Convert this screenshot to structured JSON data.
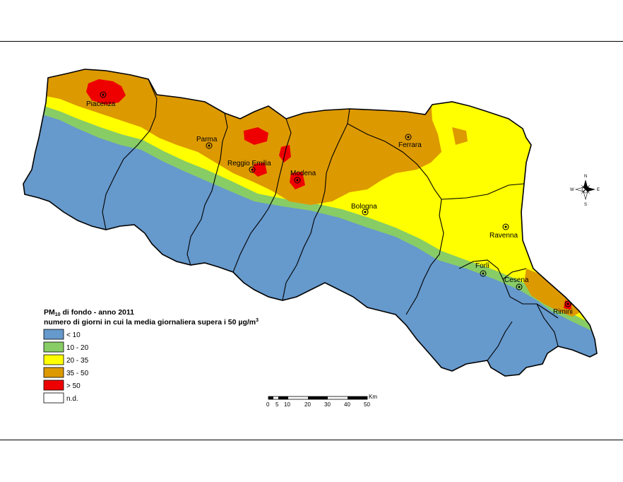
{
  "colors": {
    "lt10": "#6699cc",
    "c10_20": "#88cc66",
    "c20_35": "#ffff00",
    "c35_50": "#dd9900",
    "gt50": "#ee0000",
    "nd": "#ffffff"
  },
  "legend": {
    "title_prefix": "PM",
    "title_sub": "10",
    "title_suffix": " di fondo - anno 2011",
    "subtitle": "numero di giorni in cui la media giornaliera supera i 50 µg/m",
    "subtitle_sup": "3",
    "items": [
      {
        "label": "< 10",
        "color": "#6699cc"
      },
      {
        "label": "10 - 20",
        "color": "#88cc66"
      },
      {
        "label": "20 - 35",
        "color": "#ffff00"
      },
      {
        "label": "35 - 50",
        "color": "#dd9900"
      },
      {
        "label": "> 50",
        "color": "#ee0000"
      },
      {
        "label": "n.d.",
        "color": "#ffffff"
      }
    ]
  },
  "cities": [
    "Piacenza",
    "Parma",
    "Reggio Emilia",
    "Modena",
    "Ferrara",
    "Bologna",
    "Ravenna",
    "Forlì",
    "Cesena",
    "Rimini"
  ],
  "scale": {
    "unit": "Km",
    "ticks": [
      "0",
      "5",
      "10",
      "20",
      "30",
      "40",
      "50"
    ]
  },
  "compass": {
    "n": "N",
    "s": "S",
    "e": "E",
    "w": "W"
  }
}
